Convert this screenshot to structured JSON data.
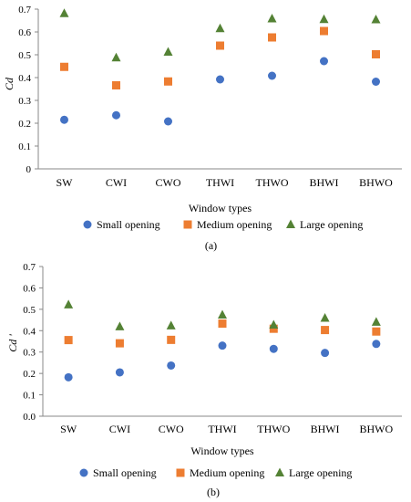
{
  "chart_data": [
    {
      "type": "scatter",
      "panel_label": "(a)",
      "ylabel": "Cd",
      "xlabel": "Window types",
      "ylim": [
        0,
        0.7
      ],
      "yticks": [
        "0",
        "0.1",
        "0.2",
        "0.3",
        "0.4",
        "0.5",
        "0.6",
        "0.7"
      ],
      "categories": [
        "SW",
        "CWI",
        "CWO",
        "THWI",
        "THWO",
        "BHWI",
        "BHWO"
      ],
      "legend_position": "bottom",
      "grid": false,
      "series": [
        {
          "name": "Small opening",
          "marker": "circle",
          "color": "#4472C4",
          "values": [
            0.215,
            0.235,
            0.208,
            0.392,
            0.408,
            0.472,
            0.382
          ]
        },
        {
          "name": "Medium opening",
          "marker": "square",
          "color": "#ED7D31",
          "values": [
            0.447,
            0.366,
            0.383,
            0.54,
            0.576,
            0.604,
            0.502
          ]
        },
        {
          "name": "Large opening",
          "marker": "triangle",
          "color": "#548235",
          "values": [
            0.681,
            0.487,
            0.512,
            0.615,
            0.658,
            0.655,
            0.654
          ]
        }
      ]
    },
    {
      "type": "scatter",
      "panel_label": "(b)",
      "ylabel": "Cd '",
      "xlabel": "Window types",
      "ylim": [
        0,
        0.7
      ],
      "yticks": [
        "0.0",
        "0.1",
        "0.2",
        "0.3",
        "0.4",
        "0.5",
        "0.6",
        "0.7"
      ],
      "categories": [
        "SW",
        "CWI",
        "CWO",
        "THWI",
        "THWO",
        "BHWI",
        "BHWO"
      ],
      "legend_position": "bottom",
      "grid": false,
      "series": [
        {
          "name": "Small opening",
          "marker": "circle",
          "color": "#4472C4",
          "values": [
            0.182,
            0.205,
            0.237,
            0.33,
            0.315,
            0.296,
            0.338
          ]
        },
        {
          "name": "Medium opening",
          "marker": "square",
          "color": "#ED7D31",
          "values": [
            0.356,
            0.341,
            0.357,
            0.433,
            0.409,
            0.403,
            0.396
          ]
        },
        {
          "name": "Large opening",
          "marker": "triangle",
          "color": "#548235",
          "values": [
            0.521,
            0.419,
            0.423,
            0.474,
            0.427,
            0.459,
            0.44
          ]
        }
      ]
    }
  ]
}
